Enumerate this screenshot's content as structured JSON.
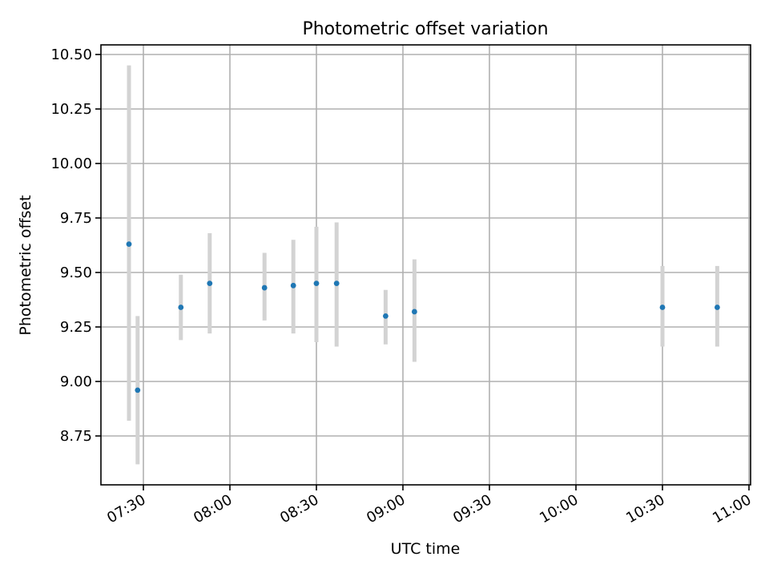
{
  "chart_data": {
    "type": "scatter",
    "title": "Photometric offset variation",
    "xlabel": "UTC time",
    "ylabel": "Photometric offset",
    "grid": true,
    "xlim": [
      "07:25",
      "11:00"
    ],
    "ylim": [
      8.555,
      10.545
    ],
    "x_ticks": [
      "07:30",
      "08:00",
      "08:30",
      "09:00",
      "09:30",
      "10:00",
      "10:30",
      "11:00"
    ],
    "y_ticks": [
      8.75,
      9.0,
      9.25,
      9.5,
      9.75,
      10.0,
      10.25,
      10.5
    ],
    "y_tick_labels": [
      "8.75",
      "9.00",
      "9.25",
      "9.50",
      "9.75",
      "10.00",
      "10.25",
      "10.50"
    ],
    "marker_color": "#1f77b4",
    "errorbar_color": "#d3d3d3",
    "points": [
      {
        "x": "07:25",
        "y": 9.63,
        "ylow": 8.82,
        "yhigh": 10.45
      },
      {
        "x": "07:28",
        "y": 8.96,
        "ylow": 8.62,
        "yhigh": 9.3
      },
      {
        "x": "07:43",
        "y": 9.34,
        "ylow": 9.19,
        "yhigh": 9.49
      },
      {
        "x": "07:53",
        "y": 9.45,
        "ylow": 9.22,
        "yhigh": 9.68
      },
      {
        "x": "08:12",
        "y": 9.43,
        "ylow": 9.28,
        "yhigh": 9.59
      },
      {
        "x": "08:22",
        "y": 9.44,
        "ylow": 9.22,
        "yhigh": 9.65
      },
      {
        "x": "08:30",
        "y": 9.45,
        "ylow": 9.18,
        "yhigh": 9.71
      },
      {
        "x": "08:37",
        "y": 9.45,
        "ylow": 9.16,
        "yhigh": 9.73
      },
      {
        "x": "08:54",
        "y": 9.3,
        "ylow": 9.17,
        "yhigh": 9.42
      },
      {
        "x": "09:04",
        "y": 9.32,
        "ylow": 9.09,
        "yhigh": 9.56
      },
      {
        "x": "10:30",
        "y": 9.34,
        "ylow": 9.16,
        "yhigh": 9.53
      },
      {
        "x": "10:49",
        "y": 9.34,
        "ylow": 9.16,
        "yhigh": 9.53
      }
    ]
  }
}
